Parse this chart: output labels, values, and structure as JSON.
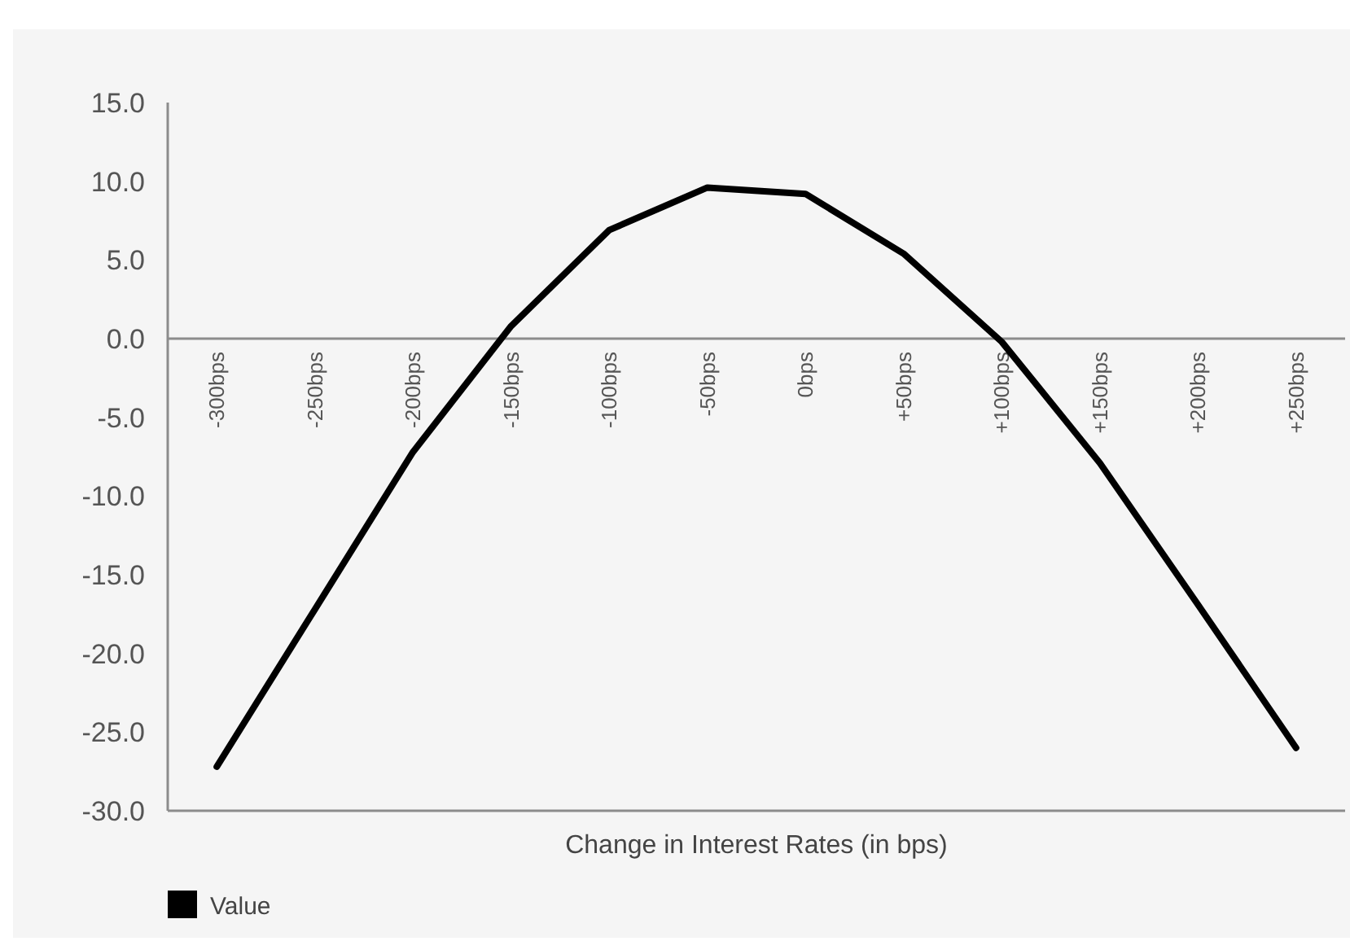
{
  "chart_data": {
    "type": "line",
    "xlabel": "Change in Interest Rates (in bps)",
    "categories": [
      "-300bps",
      "-250bps",
      "-200bps",
      "-150bps",
      "-100bps",
      "-50bps",
      "0bps",
      "+50bps",
      "+100bps",
      "+150bps",
      "+200bps",
      "+250bps"
    ],
    "series": [
      {
        "name": "Value",
        "color": "#000000",
        "values": [
          -27.2,
          -17.2,
          -7.2,
          0.8,
          6.9,
          9.6,
          9.2,
          5.4,
          -0.2,
          -7.9,
          -16.9,
          -26.0
        ]
      }
    ],
    "ylim": [
      -30,
      15
    ],
    "yticks": [
      {
        "value": -30,
        "label": "-30.0"
      },
      {
        "value": -25,
        "label": "-25.0"
      },
      {
        "value": -20,
        "label": "-20.0"
      },
      {
        "value": -15,
        "label": "-15.0"
      },
      {
        "value": -10,
        "label": "-10.0"
      },
      {
        "value": -5,
        "label": "-5.0"
      },
      {
        "value": 0,
        "label": "0.0"
      },
      {
        "value": 5,
        "label": "5.0"
      },
      {
        "value": 10,
        "label": "10.0"
      },
      {
        "value": 15,
        "label": "15.0"
      }
    ],
    "grid": false,
    "legend": "bottom left",
    "marker": "none",
    "line_style": "solid"
  }
}
